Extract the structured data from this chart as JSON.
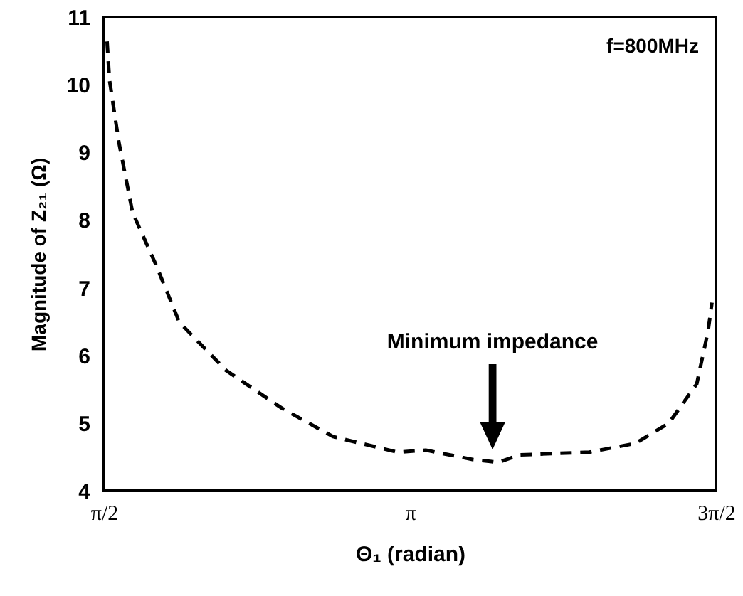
{
  "chart_data": {
    "type": "line",
    "xlabel": "Θ₁ (radian)",
    "ylabel": "Magnitude of Z₂₁ (Ω)",
    "x": [
      1.587,
      1.599,
      1.647,
      1.718,
      1.838,
      1.958,
      2.197,
      2.484,
      2.747,
      3.079,
      3.223,
      3.467,
      3.596,
      3.703,
      4.062,
      4.299,
      4.471,
      4.614,
      4.672,
      4.692
    ],
    "series": [
      {
        "color": "#000000",
        "line_style": "dashed",
        "values": [
          10.64,
          10.08,
          9.16,
          8.11,
          7.34,
          6.49,
          5.78,
          5.22,
          4.8,
          4.57,
          4.6,
          4.46,
          4.42,
          4.53,
          4.57,
          4.7,
          5.0,
          5.58,
          6.36,
          6.78
        ]
      }
    ],
    "xlim": [
      1.5708,
      4.7124
    ],
    "xticks": [
      {
        "value": 1.5708,
        "label": "π/2"
      },
      {
        "value": 3.1416,
        "label": "π"
      },
      {
        "value": 4.7124,
        "label": "3π/2"
      }
    ],
    "ylim": [
      4,
      11
    ],
    "yticks": [
      4,
      5,
      6,
      7,
      8,
      9,
      10,
      11
    ],
    "annotations": [
      "f=800MHz",
      "Minimum impedance"
    ]
  }
}
